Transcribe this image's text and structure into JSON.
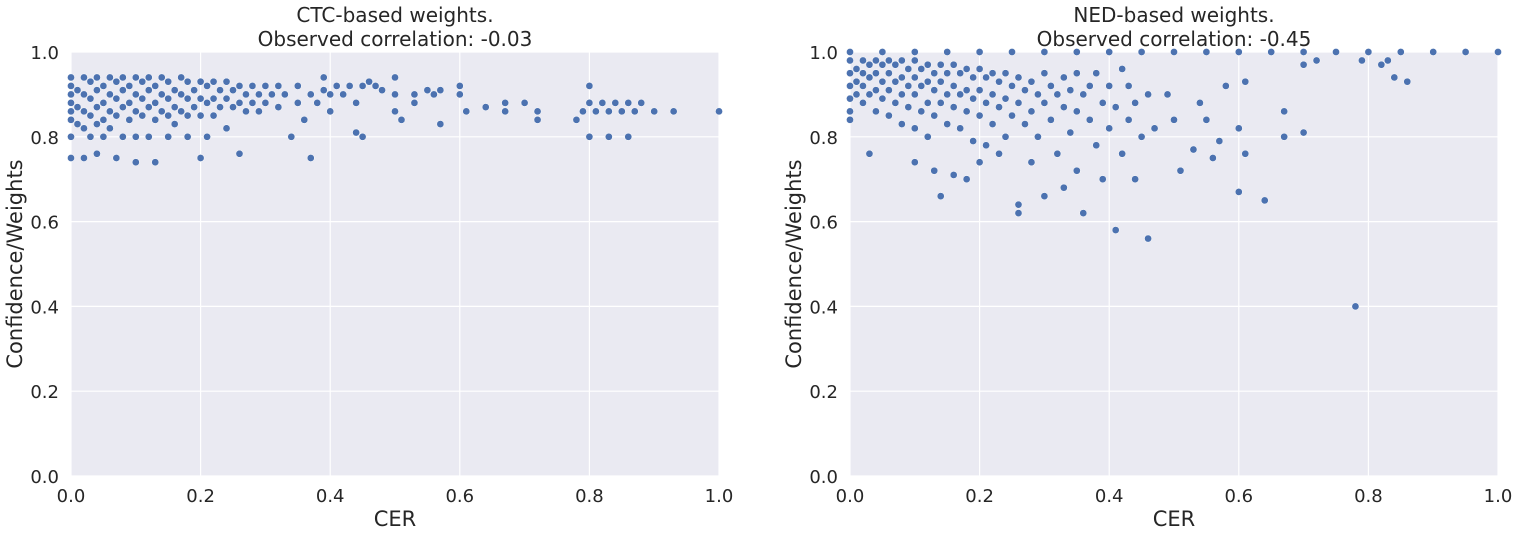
{
  "colors": {
    "panel": "#eaeaf2",
    "grid": "#ffffff",
    "point": "#4c72b0",
    "point_edge": "#ffffff",
    "text": "#262626"
  },
  "chart_data": [
    {
      "type": "scatter",
      "title_line1": "CTC-based weights.",
      "title_line2": "Observed correlation: -0.03",
      "xlabel": "CER",
      "ylabel": "Confidence/Weights",
      "xlim": [
        0,
        1
      ],
      "ylim": [
        0,
        1
      ],
      "xticks": [
        "0.0",
        "0.2",
        "0.4",
        "0.6",
        "0.8",
        "1.0"
      ],
      "yticks": [
        "0.0",
        "0.2",
        "0.4",
        "0.6",
        "0.8",
        "1.0"
      ],
      "grid": true,
      "points": [
        [
          0.0,
          0.94
        ],
        [
          0.0,
          0.92
        ],
        [
          0.0,
          0.9
        ],
        [
          0.0,
          0.88
        ],
        [
          0.0,
          0.86
        ],
        [
          0.0,
          0.84
        ],
        [
          0.0,
          0.8
        ],
        [
          0.0,
          0.75
        ],
        [
          0.01,
          0.91
        ],
        [
          0.01,
          0.87
        ],
        [
          0.01,
          0.83
        ],
        [
          0.02,
          0.94
        ],
        [
          0.02,
          0.9
        ],
        [
          0.02,
          0.86
        ],
        [
          0.02,
          0.82
        ],
        [
          0.02,
          0.75
        ],
        [
          0.03,
          0.93
        ],
        [
          0.03,
          0.89
        ],
        [
          0.03,
          0.85
        ],
        [
          0.03,
          0.8
        ],
        [
          0.04,
          0.94
        ],
        [
          0.04,
          0.91
        ],
        [
          0.04,
          0.87
        ],
        [
          0.04,
          0.83
        ],
        [
          0.04,
          0.76
        ],
        [
          0.05,
          0.92
        ],
        [
          0.05,
          0.88
        ],
        [
          0.05,
          0.84
        ],
        [
          0.05,
          0.8
        ],
        [
          0.06,
          0.94
        ],
        [
          0.06,
          0.9
        ],
        [
          0.06,
          0.86
        ],
        [
          0.06,
          0.82
        ],
        [
          0.07,
          0.93
        ],
        [
          0.07,
          0.89
        ],
        [
          0.07,
          0.85
        ],
        [
          0.07,
          0.75
        ],
        [
          0.08,
          0.94
        ],
        [
          0.08,
          0.91
        ],
        [
          0.08,
          0.87
        ],
        [
          0.08,
          0.8
        ],
        [
          0.09,
          0.92
        ],
        [
          0.09,
          0.88
        ],
        [
          0.09,
          0.84
        ],
        [
          0.1,
          0.94
        ],
        [
          0.1,
          0.9
        ],
        [
          0.1,
          0.86
        ],
        [
          0.1,
          0.8
        ],
        [
          0.1,
          0.74
        ],
        [
          0.11,
          0.93
        ],
        [
          0.11,
          0.89
        ],
        [
          0.11,
          0.85
        ],
        [
          0.12,
          0.94
        ],
        [
          0.12,
          0.91
        ],
        [
          0.12,
          0.87
        ],
        [
          0.12,
          0.8
        ],
        [
          0.13,
          0.92
        ],
        [
          0.13,
          0.88
        ],
        [
          0.13,
          0.84
        ],
        [
          0.13,
          0.74
        ],
        [
          0.14,
          0.94
        ],
        [
          0.14,
          0.9
        ],
        [
          0.14,
          0.86
        ],
        [
          0.15,
          0.93
        ],
        [
          0.15,
          0.89
        ],
        [
          0.15,
          0.85
        ],
        [
          0.15,
          0.8
        ],
        [
          0.16,
          0.91
        ],
        [
          0.16,
          0.87
        ],
        [
          0.16,
          0.83
        ],
        [
          0.17,
          0.94
        ],
        [
          0.17,
          0.9
        ],
        [
          0.17,
          0.86
        ],
        [
          0.18,
          0.93
        ],
        [
          0.18,
          0.89
        ],
        [
          0.18,
          0.85
        ],
        [
          0.18,
          0.8
        ],
        [
          0.19,
          0.91
        ],
        [
          0.19,
          0.87
        ],
        [
          0.2,
          0.93
        ],
        [
          0.2,
          0.89
        ],
        [
          0.2,
          0.85
        ],
        [
          0.2,
          0.75
        ],
        [
          0.21,
          0.92
        ],
        [
          0.21,
          0.88
        ],
        [
          0.21,
          0.8
        ],
        [
          0.22,
          0.93
        ],
        [
          0.22,
          0.89
        ],
        [
          0.22,
          0.85
        ],
        [
          0.23,
          0.91
        ],
        [
          0.23,
          0.87
        ],
        [
          0.24,
          0.93
        ],
        [
          0.24,
          0.89
        ],
        [
          0.24,
          0.82
        ],
        [
          0.25,
          0.91
        ],
        [
          0.25,
          0.87
        ],
        [
          0.26,
          0.92
        ],
        [
          0.26,
          0.88
        ],
        [
          0.26,
          0.76
        ],
        [
          0.27,
          0.9
        ],
        [
          0.27,
          0.86
        ],
        [
          0.28,
          0.92
        ],
        [
          0.28,
          0.88
        ],
        [
          0.29,
          0.9
        ],
        [
          0.29,
          0.86
        ],
        [
          0.3,
          0.92
        ],
        [
          0.3,
          0.88
        ],
        [
          0.31,
          0.9
        ],
        [
          0.32,
          0.92
        ],
        [
          0.32,
          0.87
        ],
        [
          0.33,
          0.9
        ],
        [
          0.34,
          0.8
        ],
        [
          0.35,
          0.92
        ],
        [
          0.35,
          0.88
        ],
        [
          0.36,
          0.84
        ],
        [
          0.37,
          0.9
        ],
        [
          0.37,
          0.75
        ],
        [
          0.38,
          0.88
        ],
        [
          0.39,
          0.94
        ],
        [
          0.39,
          0.91
        ],
        [
          0.4,
          0.86
        ],
        [
          0.4,
          0.9
        ],
        [
          0.41,
          0.92
        ],
        [
          0.42,
          0.9
        ],
        [
          0.43,
          0.92
        ],
        [
          0.44,
          0.81
        ],
        [
          0.44,
          0.88
        ],
        [
          0.45,
          0.92
        ],
        [
          0.45,
          0.8
        ],
        [
          0.46,
          0.93
        ],
        [
          0.47,
          0.92
        ],
        [
          0.48,
          0.91
        ],
        [
          0.5,
          0.94
        ],
        [
          0.5,
          0.9
        ],
        [
          0.5,
          0.86
        ],
        [
          0.51,
          0.84
        ],
        [
          0.53,
          0.88
        ],
        [
          0.53,
          0.9
        ],
        [
          0.55,
          0.91
        ],
        [
          0.56,
          0.9
        ],
        [
          0.57,
          0.83
        ],
        [
          0.57,
          0.91
        ],
        [
          0.6,
          0.92
        ],
        [
          0.6,
          0.9
        ],
        [
          0.61,
          0.86
        ],
        [
          0.64,
          0.87
        ],
        [
          0.67,
          0.88
        ],
        [
          0.67,
          0.86
        ],
        [
          0.7,
          0.88
        ],
        [
          0.72,
          0.84
        ],
        [
          0.72,
          0.86
        ],
        [
          0.78,
          0.84
        ],
        [
          0.79,
          0.86
        ],
        [
          0.8,
          0.92
        ],
        [
          0.8,
          0.88
        ],
        [
          0.8,
          0.8
        ],
        [
          0.81,
          0.86
        ],
        [
          0.82,
          0.88
        ],
        [
          0.83,
          0.86
        ],
        [
          0.83,
          0.8
        ],
        [
          0.84,
          0.88
        ],
        [
          0.85,
          0.86
        ],
        [
          0.86,
          0.88
        ],
        [
          0.86,
          0.8
        ],
        [
          0.87,
          0.86
        ],
        [
          0.88,
          0.88
        ],
        [
          0.9,
          0.86
        ],
        [
          0.93,
          0.86
        ],
        [
          1.0,
          0.86
        ]
      ]
    },
    {
      "type": "scatter",
      "title_line1": "NED-based weights.",
      "title_line2": "Observed correlation: -0.45",
      "xlabel": "CER",
      "ylabel": "Confidence/Weights",
      "xlim": [
        0,
        1
      ],
      "ylim": [
        0,
        1
      ],
      "xticks": [
        "0.0",
        "0.2",
        "0.4",
        "0.6",
        "0.8",
        "1.0"
      ],
      "yticks": [
        "0.0",
        "0.2",
        "0.4",
        "0.6",
        "0.8",
        "1.0"
      ],
      "grid": true,
      "points": [
        [
          0.0,
          1.0
        ],
        [
          0.0,
          0.98
        ],
        [
          0.0,
          0.95
        ],
        [
          0.0,
          0.92
        ],
        [
          0.0,
          0.89
        ],
        [
          0.0,
          0.86
        ],
        [
          0.0,
          0.84
        ],
        [
          0.01,
          0.96
        ],
        [
          0.01,
          0.93
        ],
        [
          0.01,
          0.9
        ],
        [
          0.02,
          0.98
        ],
        [
          0.02,
          0.95
        ],
        [
          0.02,
          0.92
        ],
        [
          0.02,
          0.88
        ],
        [
          0.03,
          0.97
        ],
        [
          0.03,
          0.94
        ],
        [
          0.03,
          0.9
        ],
        [
          0.03,
          0.76
        ],
        [
          0.04,
          0.98
        ],
        [
          0.04,
          0.95
        ],
        [
          0.04,
          0.91
        ],
        [
          0.04,
          0.86
        ],
        [
          0.05,
          0.97
        ],
        [
          0.05,
          0.93
        ],
        [
          0.05,
          0.89
        ],
        [
          0.06,
          0.98
        ],
        [
          0.06,
          0.95
        ],
        [
          0.06,
          0.91
        ],
        [
          0.06,
          0.85
        ],
        [
          0.07,
          0.97
        ],
        [
          0.07,
          0.93
        ],
        [
          0.07,
          0.88
        ],
        [
          0.08,
          0.98
        ],
        [
          0.08,
          0.94
        ],
        [
          0.08,
          0.9
        ],
        [
          0.08,
          0.83
        ],
        [
          0.09,
          0.96
        ],
        [
          0.09,
          0.92
        ],
        [
          0.09,
          0.87
        ],
        [
          0.1,
          0.98
        ],
        [
          0.1,
          0.94
        ],
        [
          0.1,
          0.9
        ],
        [
          0.1,
          0.82
        ],
        [
          0.1,
          0.74
        ],
        [
          0.11,
          0.96
        ],
        [
          0.11,
          0.92
        ],
        [
          0.11,
          0.86
        ],
        [
          0.12,
          0.97
        ],
        [
          0.12,
          0.93
        ],
        [
          0.12,
          0.88
        ],
        [
          0.12,
          0.8
        ],
        [
          0.13,
          0.95
        ],
        [
          0.13,
          0.91
        ],
        [
          0.13,
          0.85
        ],
        [
          0.13,
          0.72
        ],
        [
          0.14,
          0.97
        ],
        [
          0.14,
          0.93
        ],
        [
          0.14,
          0.88
        ],
        [
          0.14,
          0.66
        ],
        [
          0.15,
          0.95
        ],
        [
          0.15,
          0.9
        ],
        [
          0.15,
          0.83
        ],
        [
          0.16,
          0.97
        ],
        [
          0.16,
          0.92
        ],
        [
          0.16,
          0.87
        ],
        [
          0.16,
          0.71
        ],
        [
          0.17,
          0.95
        ],
        [
          0.17,
          0.9
        ],
        [
          0.17,
          0.82
        ],
        [
          0.18,
          0.96
        ],
        [
          0.18,
          0.91
        ],
        [
          0.18,
          0.86
        ],
        [
          0.18,
          0.7
        ],
        [
          0.19,
          0.94
        ],
        [
          0.19,
          0.89
        ],
        [
          0.19,
          0.79
        ],
        [
          0.2,
          0.96
        ],
        [
          0.2,
          0.91
        ],
        [
          0.2,
          0.85
        ],
        [
          0.2,
          0.74
        ],
        [
          0.21,
          0.94
        ],
        [
          0.21,
          0.88
        ],
        [
          0.21,
          0.78
        ],
        [
          0.22,
          0.95
        ],
        [
          0.22,
          0.9
        ],
        [
          0.22,
          0.83
        ],
        [
          0.23,
          0.93
        ],
        [
          0.23,
          0.87
        ],
        [
          0.23,
          0.76
        ],
        [
          0.24,
          0.95
        ],
        [
          0.24,
          0.89
        ],
        [
          0.24,
          0.8
        ],
        [
          0.25,
          0.92
        ],
        [
          0.25,
          0.85
        ],
        [
          0.26,
          0.94
        ],
        [
          0.26,
          0.88
        ],
        [
          0.26,
          0.64
        ],
        [
          0.26,
          0.62
        ],
        [
          0.27,
          0.91
        ],
        [
          0.27,
          0.83
        ],
        [
          0.28,
          0.93
        ],
        [
          0.28,
          0.86
        ],
        [
          0.28,
          0.74
        ],
        [
          0.29,
          0.9
        ],
        [
          0.29,
          0.8
        ],
        [
          0.3,
          0.95
        ],
        [
          0.3,
          0.88
        ],
        [
          0.3,
          0.66
        ],
        [
          0.31,
          0.92
        ],
        [
          0.31,
          0.84
        ],
        [
          0.32,
          0.9
        ],
        [
          0.32,
          0.76
        ],
        [
          0.33,
          0.94
        ],
        [
          0.33,
          0.87
        ],
        [
          0.33,
          0.68
        ],
        [
          0.34,
          0.91
        ],
        [
          0.34,
          0.81
        ],
        [
          0.35,
          0.95
        ],
        [
          0.35,
          0.86
        ],
        [
          0.35,
          0.72
        ],
        [
          0.36,
          0.9
        ],
        [
          0.36,
          0.62
        ],
        [
          0.37,
          0.84
        ],
        [
          0.37,
          0.92
        ],
        [
          0.38,
          0.78
        ],
        [
          0.38,
          0.95
        ],
        [
          0.39,
          0.88
        ],
        [
          0.39,
          0.7
        ],
        [
          0.4,
          0.82
        ],
        [
          0.4,
          0.92
        ],
        [
          0.41,
          0.58
        ],
        [
          0.41,
          0.87
        ],
        [
          0.42,
          0.76
        ],
        [
          0.42,
          0.96
        ],
        [
          0.43,
          0.84
        ],
        [
          0.43,
          0.92
        ],
        [
          0.44,
          0.7
        ],
        [
          0.44,
          0.88
        ],
        [
          0.45,
          0.8
        ],
        [
          0.46,
          0.56
        ],
        [
          0.46,
          0.9
        ],
        [
          0.47,
          0.82
        ],
        [
          0.49,
          0.9
        ],
        [
          0.5,
          0.84
        ],
        [
          0.51,
          0.72
        ],
        [
          0.53,
          0.77
        ],
        [
          0.54,
          0.88
        ],
        [
          0.55,
          0.84
        ],
        [
          0.56,
          0.75
        ],
        [
          0.57,
          0.79
        ],
        [
          0.58,
          0.92
        ],
        [
          0.6,
          0.82
        ],
        [
          0.6,
          0.67
        ],
        [
          0.61,
          0.76
        ],
        [
          0.61,
          0.93
        ],
        [
          0.64,
          0.65
        ],
        [
          0.67,
          0.8
        ],
        [
          0.67,
          0.86
        ],
        [
          0.7,
          0.97
        ],
        [
          0.7,
          0.81
        ],
        [
          0.72,
          0.98
        ],
        [
          0.78,
          0.4
        ],
        [
          0.79,
          0.98
        ],
        [
          0.82,
          0.97
        ],
        [
          0.83,
          0.98
        ],
        [
          0.84,
          0.94
        ],
        [
          0.86,
          0.93
        ],
        [
          0.05,
          1.0
        ],
        [
          0.1,
          1.0
        ],
        [
          0.15,
          1.0
        ],
        [
          0.2,
          1.0
        ],
        [
          0.25,
          1.0
        ],
        [
          0.3,
          1.0
        ],
        [
          0.35,
          1.0
        ],
        [
          0.4,
          1.0
        ],
        [
          0.45,
          1.0
        ],
        [
          0.5,
          1.0
        ],
        [
          0.55,
          1.0
        ],
        [
          0.6,
          1.0
        ],
        [
          0.65,
          1.0
        ],
        [
          0.7,
          1.0
        ],
        [
          0.75,
          1.0
        ],
        [
          0.8,
          1.0
        ],
        [
          0.85,
          1.0
        ],
        [
          0.9,
          1.0
        ],
        [
          0.95,
          1.0
        ],
        [
          1.0,
          1.0
        ]
      ]
    }
  ]
}
